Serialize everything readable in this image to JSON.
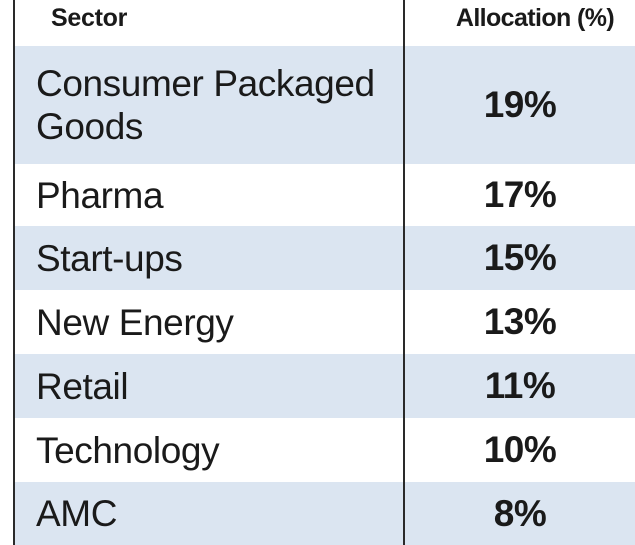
{
  "chart_data": {
    "type": "table",
    "columns": [
      "Sector",
      "Allocation (%)"
    ],
    "rows": [
      {
        "sector": "Consumer Packaged Goods",
        "allocation": "19%"
      },
      {
        "sector": "Pharma",
        "allocation": "17%"
      },
      {
        "sector": "Start-ups",
        "allocation": "15%"
      },
      {
        "sector": "New Energy",
        "allocation": "13%"
      },
      {
        "sector": "Retail",
        "allocation": "11%"
      },
      {
        "sector": "Technology",
        "allocation": "10%"
      },
      {
        "sector": "AMC",
        "allocation": "8%"
      }
    ],
    "colors": {
      "shaded_row": "#dbe5f1",
      "plain_row": "#ffffff",
      "rule": "#2a2a2a"
    }
  }
}
